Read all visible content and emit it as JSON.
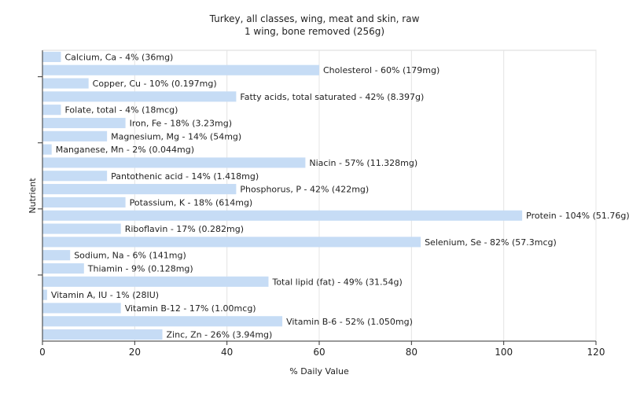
{
  "chart_data": {
    "type": "bar",
    "orientation": "horizontal",
    "title": "Turkey, all classes, wing, meat and skin, raw",
    "subtitle": "1 wing, bone removed (256g)",
    "xlabel": "% Daily Value",
    "ylabel": "Nutrient",
    "xlim": [
      0,
      120
    ],
    "xticks": [
      0,
      20,
      40,
      60,
      80,
      100,
      120
    ],
    "grid": true,
    "bar_color": "#c6dcf5",
    "categories": [
      "Calcium, Ca",
      "Cholesterol",
      "Copper, Cu",
      "Fatty acids, total saturated",
      "Folate, total",
      "Iron, Fe",
      "Magnesium, Mg",
      "Manganese, Mn",
      "Niacin",
      "Pantothenic acid",
      "Phosphorus, P",
      "Potassium, K",
      "Protein",
      "Riboflavin",
      "Selenium, Se",
      "Sodium, Na",
      "Thiamin",
      "Total lipid (fat)",
      "Vitamin A, IU",
      "Vitamin B-12",
      "Vitamin B-6",
      "Zinc, Zn"
    ],
    "values": [
      4,
      60,
      10,
      42,
      4,
      18,
      14,
      2,
      57,
      14,
      42,
      18,
      104,
      17,
      82,
      6,
      9,
      49,
      1,
      17,
      52,
      26
    ],
    "labels": [
      "Calcium, Ca - 4% (36mg)",
      "Cholesterol - 60% (179mg)",
      "Copper, Cu - 10% (0.197mg)",
      "Fatty acids, total saturated - 42% (8.397g)",
      "Folate, total - 4% (18mcg)",
      "Iron, Fe - 18% (3.23mg)",
      "Magnesium, Mg - 14% (54mg)",
      "Manganese, Mn - 2% (0.044mg)",
      "Niacin - 57% (11.328mg)",
      "Pantothenic acid - 14% (1.418mg)",
      "Phosphorus, P - 42% (422mg)",
      "Potassium, K - 18% (614mg)",
      "Protein - 104% (51.76g)",
      "Riboflavin - 17% (0.282mg)",
      "Selenium, Se - 82% (57.3mcg)",
      "Sodium, Na - 6% (141mg)",
      "Thiamin - 9% (0.128mg)",
      "Total lipid (fat) - 49% (31.54g)",
      "Vitamin A, IU - 1% (28IU)",
      "Vitamin B-12 - 17% (1.00mcg)",
      "Vitamin B-6 - 52% (1.050mg)",
      "Zinc, Zn - 26% (3.94mg)"
    ]
  }
}
